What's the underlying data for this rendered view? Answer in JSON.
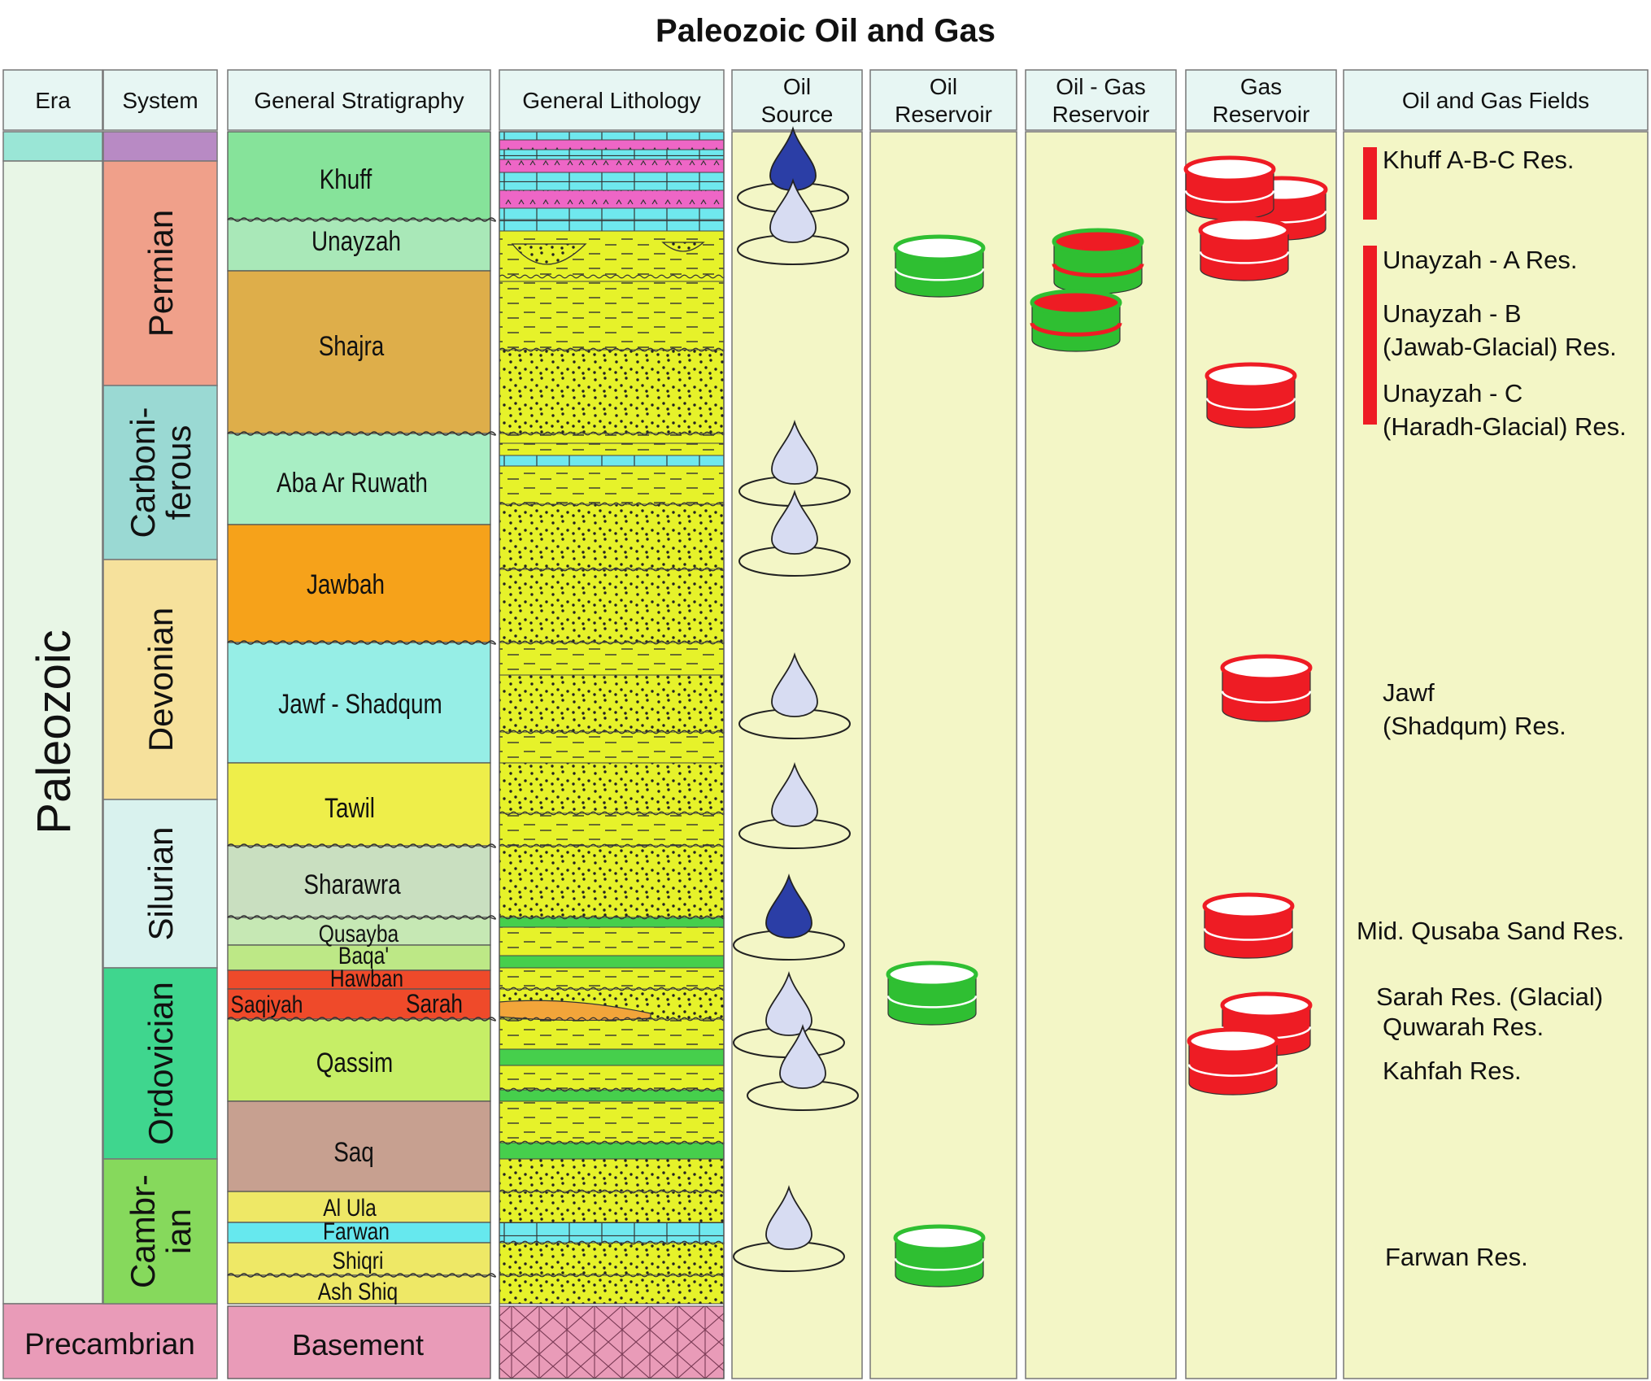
{
  "title": "Paleozoic Oil and Gas",
  "headers": {
    "era": "Era",
    "system": "System",
    "stratigraphy": "General Stratigraphy",
    "lithology": "General Lithology",
    "oil_source": [
      "Oil",
      "Source"
    ],
    "oil_reservoir": [
      "Oil",
      "Reservoir"
    ],
    "oil_gas_reservoir": [
      "Oil - Gas",
      "Reservoir"
    ],
    "gas_reservoir": [
      "Gas",
      "Reservoir"
    ],
    "fields": "Oil and Gas Fields"
  },
  "eras": [
    {
      "name": "Paleozoic",
      "color": "#e8f6e6"
    },
    {
      "name": "Precambrian",
      "color": "#e99bb8"
    }
  ],
  "systems": [
    {
      "name": "Permian",
      "lines": [
        "Permian"
      ],
      "color": "#f0a08a"
    },
    {
      "name": "Carboniferous",
      "lines": [
        "Carboni-",
        "ferous"
      ],
      "color": "#9ad9d3"
    },
    {
      "name": "Devonian",
      "lines": [
        "Devonian"
      ],
      "color": "#f6e19c"
    },
    {
      "name": "Silurian",
      "lines": [
        "Silurian"
      ],
      "color": "#d9f2ee"
    },
    {
      "name": "Ordovician",
      "lines": [
        "Ordovician"
      ],
      "color": "#3fd68e"
    },
    {
      "name": "Cambrian",
      "lines": [
        "Cambr-",
        "ian"
      ],
      "color": "#86d95c"
    }
  ],
  "formations": [
    {
      "name": "Khuff",
      "color": "#86e39a"
    },
    {
      "name": "Unayzah",
      "color": "#a9e8b8"
    },
    {
      "name": "Shajra",
      "color": "#deae4a"
    },
    {
      "name": "Aba Ar Ruwath",
      "color": "#a8eec4"
    },
    {
      "name": "Jawbah",
      "color": "#f6a21a"
    },
    {
      "name": "Jawf - Shadqum",
      "color": "#96eee6"
    },
    {
      "name": "Tawil",
      "color": "#eeee4a"
    },
    {
      "name": "Sharawra",
      "color": "#c9dfc0"
    },
    {
      "name": "Qusayba",
      "color": "#c6e8b4"
    },
    {
      "name": "Baqa'",
      "color": "#bde886"
    },
    {
      "name": "Hawban",
      "color": "#ef4a2a"
    },
    {
      "name": "Saqiyah",
      "color": "#ef4a2a"
    },
    {
      "name": "Sarah",
      "color": "#ef4a2a"
    },
    {
      "name": "Qassim",
      "color": "#c6ee66"
    },
    {
      "name": "Saq",
      "color": "#c7a090"
    },
    {
      "name": "Al Ula",
      "color": "#eee866"
    },
    {
      "name": "Farwan",
      "color": "#66e8ee"
    },
    {
      "name": "Shiqri",
      "color": "#eee866"
    },
    {
      "name": "Ash Shiq",
      "color": "#eee866"
    },
    {
      "name": "Basement",
      "color": "#e99bb8"
    }
  ],
  "fields": [
    {
      "label": [
        "Khuff A-B-C Res."
      ]
    },
    {
      "label": [
        "Unayzah - A Res."
      ]
    },
    {
      "label": [
        "Unayzah - B",
        "(Jawab-Glacial) Res."
      ]
    },
    {
      "label": [
        "Unayzah - C",
        "(Haradh-Glacial) Res."
      ]
    },
    {
      "label": [
        "Jawf",
        "(Shadqum) Res."
      ]
    },
    {
      "label": [
        "Mid. Qusaba Sand Res."
      ]
    },
    {
      "label": [
        "Sarah Res. (Glacial)"
      ]
    },
    {
      "label": [
        "Quwarah Res."
      ]
    },
    {
      "label": [
        "Kahfah Res."
      ]
    },
    {
      "label": [
        "Farwan Res."
      ]
    }
  ],
  "colors": {
    "column_bg": "#f3f6c6",
    "header_bg": "#e7f6f3",
    "oil_dark": "#2b3ea6",
    "oil_light": "#d7dcf2",
    "oil_reservoir": "#2fbf32",
    "gas_reservoir": "#ee1c24",
    "lithology_sand": "#e6f22a",
    "lithology_carbonate": "#6fe8ee",
    "lithology_evaporite": "#ee66c6"
  }
}
